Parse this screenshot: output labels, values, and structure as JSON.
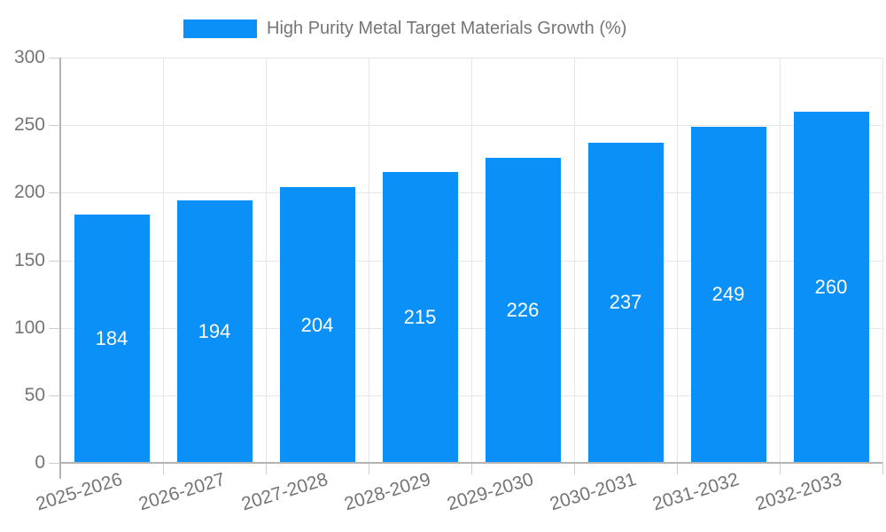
{
  "chart_data": {
    "type": "bar",
    "title": "High Purity Metal Target Materials Growth (%)",
    "series_name": "High Purity Metal Target Materials Growth (%)",
    "categories": [
      "2025-2026",
      "2026-2027",
      "2027-2028",
      "2028-2029",
      "2029-2030",
      "2030-2031",
      "2031-2032",
      "2032-2033"
    ],
    "values": [
      184,
      194,
      204,
      215,
      226,
      237,
      249,
      260
    ],
    "xlabel": "",
    "ylabel": "",
    "ylim": [
      0,
      300
    ],
    "yticks": [
      0,
      50,
      100,
      150,
      200,
      250,
      300
    ],
    "grid": true,
    "legend_position": "top",
    "bar_color": "#0A90F7",
    "value_label_color": "#ffffff",
    "axis_text_color": "#757575",
    "gridline_color": "#e6e6e6",
    "axis_line_color": "#b3b3b3"
  }
}
